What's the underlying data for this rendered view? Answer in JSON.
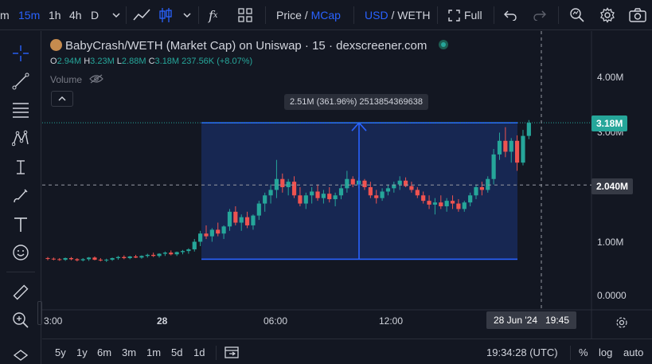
{
  "toolbar": {
    "intervals": [
      "m",
      "15m",
      "1h",
      "4h",
      "D"
    ],
    "active_interval": "15m",
    "price_label": "Price",
    "slash": "/",
    "mcap_label": "MCap",
    "usd_label": "USD",
    "weth_label": "/ WETH",
    "full_label": "Full"
  },
  "legend": {
    "title": "BabyCrash/WETH (Market Cap) on Uniswap · 15 · dexscreener.com",
    "o_key": "O",
    "o_val": "2.94M",
    "h_key": "H",
    "h_val": "3.23M",
    "l_key": "L",
    "l_val": "2.88M",
    "c_key": "C",
    "c_val": "3.18M",
    "change": "237.56K (+8.07%)",
    "volume_label": "Volume"
  },
  "measure": {
    "tooltip": "2.51M (361.96%) 2513854369638"
  },
  "price_axis": {
    "ticks": [
      "4.00M",
      "3.00M",
      "1.00M",
      "0.0000"
    ],
    "last_price": "3.18M",
    "crosshair_price": "2.040M"
  },
  "time_axis": {
    "ticks": [
      "3:00",
      "28",
      "06:00",
      "12:00"
    ],
    "crosshair_time": "28 Jun '24   19:45"
  },
  "bottom": {
    "ranges": [
      "5y",
      "1y",
      "6m",
      "3m",
      "1m",
      "5d",
      "1d"
    ],
    "clock": "19:34:28 (UTC)",
    "percent": "%",
    "log": "log",
    "auto": "auto"
  },
  "colors": {
    "up": "#26a69a",
    "down": "#ef5350",
    "measure": "#2962ff",
    "bg": "#131722"
  },
  "chart_data": {
    "type": "candlestick",
    "title": "BabyCrash/WETH (Market Cap) on Uniswap · 15 · dexscreener.com",
    "ylim": [
      0,
      4.4
    ],
    "yunit": "M",
    "candles": [
      {
        "o": 0.7,
        "h": 0.72,
        "l": 0.66,
        "c": 0.69
      },
      {
        "o": 0.69,
        "h": 0.71,
        "l": 0.66,
        "c": 0.68
      },
      {
        "o": 0.68,
        "h": 0.7,
        "l": 0.65,
        "c": 0.67
      },
      {
        "o": 0.67,
        "h": 0.71,
        "l": 0.65,
        "c": 0.7
      },
      {
        "o": 0.7,
        "h": 0.72,
        "l": 0.66,
        "c": 0.68
      },
      {
        "o": 0.68,
        "h": 0.7,
        "l": 0.64,
        "c": 0.66
      },
      {
        "o": 0.66,
        "h": 0.7,
        "l": 0.64,
        "c": 0.68
      },
      {
        "o": 0.68,
        "h": 0.72,
        "l": 0.65,
        "c": 0.71
      },
      {
        "o": 0.71,
        "h": 0.73,
        "l": 0.66,
        "c": 0.67
      },
      {
        "o": 0.67,
        "h": 0.7,
        "l": 0.64,
        "c": 0.66
      },
      {
        "o": 0.66,
        "h": 0.69,
        "l": 0.63,
        "c": 0.67
      },
      {
        "o": 0.67,
        "h": 0.71,
        "l": 0.65,
        "c": 0.7
      },
      {
        "o": 0.7,
        "h": 0.74,
        "l": 0.67,
        "c": 0.72
      },
      {
        "o": 0.72,
        "h": 0.75,
        "l": 0.68,
        "c": 0.7
      },
      {
        "o": 0.7,
        "h": 0.74,
        "l": 0.68,
        "c": 0.73
      },
      {
        "o": 0.73,
        "h": 0.76,
        "l": 0.7,
        "c": 0.71
      },
      {
        "o": 0.71,
        "h": 0.75,
        "l": 0.69,
        "c": 0.74
      },
      {
        "o": 0.74,
        "h": 0.78,
        "l": 0.71,
        "c": 0.76
      },
      {
        "o": 0.76,
        "h": 0.8,
        "l": 0.72,
        "c": 0.74
      },
      {
        "o": 0.74,
        "h": 0.79,
        "l": 0.71,
        "c": 0.78
      },
      {
        "o": 0.78,
        "h": 0.82,
        "l": 0.74,
        "c": 0.8
      },
      {
        "o": 0.8,
        "h": 0.84,
        "l": 0.75,
        "c": 0.77
      },
      {
        "o": 0.77,
        "h": 0.82,
        "l": 0.74,
        "c": 0.81
      },
      {
        "o": 0.81,
        "h": 0.85,
        "l": 0.77,
        "c": 0.83
      },
      {
        "o": 0.83,
        "h": 0.88,
        "l": 0.78,
        "c": 0.86
      },
      {
        "o": 0.86,
        "h": 1.05,
        "l": 0.82,
        "c": 1.0
      },
      {
        "o": 1.0,
        "h": 1.2,
        "l": 0.92,
        "c": 1.15
      },
      {
        "o": 1.15,
        "h": 1.3,
        "l": 1.05,
        "c": 1.1
      },
      {
        "o": 1.1,
        "h": 1.25,
        "l": 1.0,
        "c": 1.22
      },
      {
        "o": 1.22,
        "h": 1.35,
        "l": 1.1,
        "c": 1.15
      },
      {
        "o": 1.15,
        "h": 1.3,
        "l": 1.05,
        "c": 1.28
      },
      {
        "o": 1.28,
        "h": 1.6,
        "l": 1.2,
        "c": 1.55
      },
      {
        "o": 1.55,
        "h": 1.65,
        "l": 1.3,
        "c": 1.35
      },
      {
        "o": 1.35,
        "h": 1.5,
        "l": 1.2,
        "c": 1.45
      },
      {
        "o": 1.45,
        "h": 1.55,
        "l": 1.25,
        "c": 1.3
      },
      {
        "o": 1.3,
        "h": 1.5,
        "l": 1.22,
        "c": 1.48
      },
      {
        "o": 1.48,
        "h": 1.75,
        "l": 1.4,
        "c": 1.7
      },
      {
        "o": 1.7,
        "h": 1.9,
        "l": 1.55,
        "c": 1.85
      },
      {
        "o": 1.85,
        "h": 2.05,
        "l": 1.7,
        "c": 1.95
      },
      {
        "o": 1.95,
        "h": 2.5,
        "l": 1.8,
        "c": 2.15
      },
      {
        "o": 2.15,
        "h": 2.25,
        "l": 1.9,
        "c": 2.0
      },
      {
        "o": 2.0,
        "h": 2.15,
        "l": 1.85,
        "c": 2.1
      },
      {
        "o": 2.1,
        "h": 2.2,
        "l": 1.8,
        "c": 1.85
      },
      {
        "o": 1.85,
        "h": 2.0,
        "l": 1.65,
        "c": 1.7
      },
      {
        "o": 1.7,
        "h": 1.9,
        "l": 1.6,
        "c": 1.85
      },
      {
        "o": 1.85,
        "h": 2.0,
        "l": 1.7,
        "c": 1.92
      },
      {
        "o": 1.92,
        "h": 2.05,
        "l": 1.75,
        "c": 1.8
      },
      {
        "o": 1.8,
        "h": 1.95,
        "l": 1.7,
        "c": 1.88
      },
      {
        "o": 1.88,
        "h": 2.0,
        "l": 1.72,
        "c": 1.78
      },
      {
        "o": 1.78,
        "h": 1.9,
        "l": 1.65,
        "c": 1.85
      },
      {
        "o": 1.85,
        "h": 2.05,
        "l": 1.78,
        "c": 1.98
      },
      {
        "o": 1.98,
        "h": 2.3,
        "l": 1.9,
        "c": 2.15
      },
      {
        "o": 2.15,
        "h": 2.2,
        "l": 2.0,
        "c": 2.05
      },
      {
        "o": 2.05,
        "h": 2.18,
        "l": 1.98,
        "c": 2.12
      },
      {
        "o": 2.12,
        "h": 2.15,
        "l": 1.95,
        "c": 2.0
      },
      {
        "o": 2.0,
        "h": 2.1,
        "l": 1.8,
        "c": 1.85
      },
      {
        "o": 1.85,
        "h": 1.95,
        "l": 1.7,
        "c": 1.8
      },
      {
        "o": 1.8,
        "h": 1.98,
        "l": 1.75,
        "c": 1.92
      },
      {
        "o": 1.92,
        "h": 2.05,
        "l": 1.85,
        "c": 1.98
      },
      {
        "o": 1.98,
        "h": 2.1,
        "l": 1.9,
        "c": 2.05
      },
      {
        "o": 2.05,
        "h": 2.2,
        "l": 1.95,
        "c": 2.12
      },
      {
        "o": 2.12,
        "h": 2.18,
        "l": 2.0,
        "c": 2.02
      },
      {
        "o": 2.02,
        "h": 2.1,
        "l": 1.9,
        "c": 1.95
      },
      {
        "o": 1.95,
        "h": 2.0,
        "l": 1.8,
        "c": 1.85
      },
      {
        "o": 1.85,
        "h": 1.92,
        "l": 1.7,
        "c": 1.75
      },
      {
        "o": 1.75,
        "h": 1.85,
        "l": 1.6,
        "c": 1.68
      },
      {
        "o": 1.68,
        "h": 1.8,
        "l": 1.5,
        "c": 1.72
      },
      {
        "o": 1.72,
        "h": 1.85,
        "l": 1.6,
        "c": 1.65
      },
      {
        "o": 1.65,
        "h": 1.8,
        "l": 1.55,
        "c": 1.75
      },
      {
        "o": 1.75,
        "h": 1.85,
        "l": 1.6,
        "c": 1.7
      },
      {
        "o": 1.7,
        "h": 1.78,
        "l": 1.55,
        "c": 1.6
      },
      {
        "o": 1.6,
        "h": 1.75,
        "l": 1.55,
        "c": 1.72
      },
      {
        "o": 1.72,
        "h": 1.9,
        "l": 1.65,
        "c": 1.85
      },
      {
        "o": 1.85,
        "h": 2.05,
        "l": 1.78,
        "c": 2.0
      },
      {
        "o": 2.0,
        "h": 2.1,
        "l": 1.85,
        "c": 1.95
      },
      {
        "o": 1.95,
        "h": 2.2,
        "l": 1.9,
        "c": 2.15
      },
      {
        "o": 2.15,
        "h": 2.7,
        "l": 2.05,
        "c": 2.6
      },
      {
        "o": 2.6,
        "h": 3.0,
        "l": 2.5,
        "c": 2.85
      },
      {
        "o": 2.85,
        "h": 3.1,
        "l": 2.55,
        "c": 2.65
      },
      {
        "o": 2.65,
        "h": 2.9,
        "l": 2.45,
        "c": 2.85
      },
      {
        "o": 2.85,
        "h": 2.95,
        "l": 2.3,
        "c": 2.45
      },
      {
        "o": 2.45,
        "h": 3.05,
        "l": 2.4,
        "c": 2.94
      },
      {
        "o": 2.94,
        "h": 3.23,
        "l": 2.88,
        "c": 3.18
      }
    ]
  }
}
